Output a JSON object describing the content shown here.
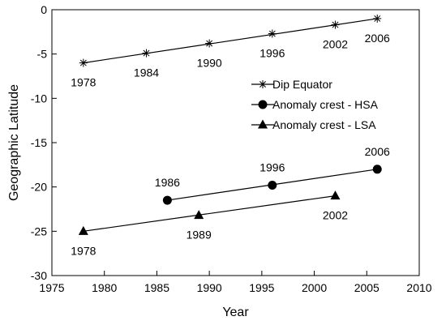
{
  "chart_data": {
    "type": "line",
    "xlabel": "Year",
    "ylabel": "Geographic Latitude",
    "xlim": [
      1975,
      2010
    ],
    "ylim": [
      -30,
      0
    ],
    "xticks": [
      1975,
      1980,
      1985,
      1990,
      1995,
      2000,
      2005,
      2010
    ],
    "yticks": [
      0,
      -5,
      -10,
      -15,
      -20,
      -25,
      -30
    ],
    "grid": false,
    "legend_position": "right-center",
    "series": [
      {
        "name": "Dip Equator",
        "marker": "asterisk",
        "color": "#000000",
        "points": [
          {
            "x": 1978,
            "y": -6.0,
            "label": "1978",
            "label_pos": "below"
          },
          {
            "x": 1984,
            "y": -4.9,
            "label": "1984",
            "label_pos": "below"
          },
          {
            "x": 1990,
            "y": -3.8,
            "label": "1990",
            "label_pos": "below"
          },
          {
            "x": 1996,
            "y": -2.7,
            "label": "1996",
            "label_pos": "below"
          },
          {
            "x": 2002,
            "y": -1.7,
            "label": "2002",
            "label_pos": "below"
          },
          {
            "x": 2006,
            "y": -1.0,
            "label": "2006",
            "label_pos": "below"
          }
        ],
        "fit": [
          {
            "x": 1978,
            "y": -6.0
          },
          {
            "x": 2006,
            "y": -1.0
          }
        ]
      },
      {
        "name": "Anomaly crest - HSA",
        "marker": "circle",
        "color": "#000000",
        "points": [
          {
            "x": 1986,
            "y": -21.5,
            "label": "1986",
            "label_pos": "above"
          },
          {
            "x": 1996,
            "y": -19.8,
            "label": "1996",
            "label_pos": "above"
          },
          {
            "x": 2006,
            "y": -18.0,
            "label": "2006",
            "label_pos": "above"
          }
        ],
        "fit": [
          {
            "x": 1986,
            "y": -21.5
          },
          {
            "x": 2006,
            "y": -18.0
          }
        ]
      },
      {
        "name": "Anomaly crest - LSA",
        "marker": "triangle",
        "color": "#000000",
        "points": [
          {
            "x": 1978,
            "y": -25.0,
            "label": "1978",
            "label_pos": "below"
          },
          {
            "x": 1989,
            "y": -23.2,
            "label": "1989",
            "label_pos": "below"
          },
          {
            "x": 2002,
            "y": -21.0,
            "label": "2002",
            "label_pos": "below"
          }
        ],
        "fit": [
          {
            "x": 1978,
            "y": -25.0
          },
          {
            "x": 2002,
            "y": -21.0
          }
        ]
      }
    ]
  }
}
